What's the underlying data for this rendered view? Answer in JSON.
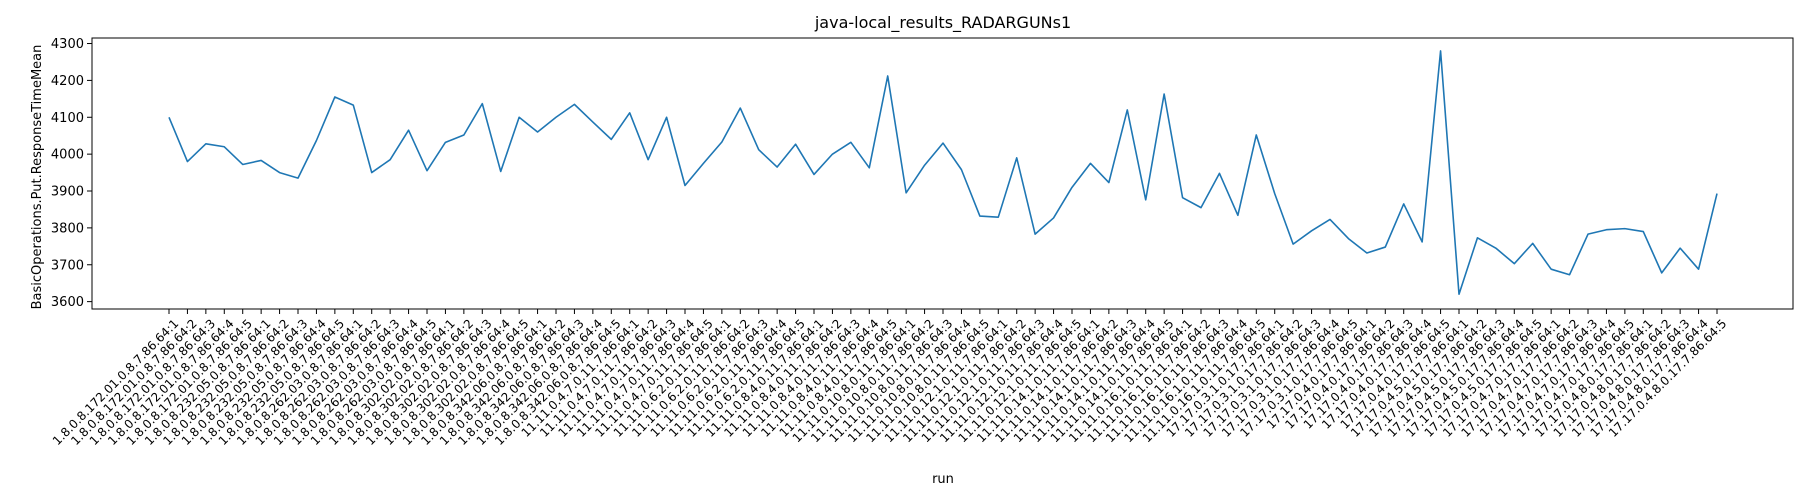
{
  "chart_data": {
    "type": "line",
    "title": "java-local_results_RADARGUNs1",
    "xlabel": "run",
    "ylabel": "BasicOperations.Put.ResponseTimeMean",
    "ylim": [
      3580,
      4315
    ],
    "yticks": [
      3600,
      3700,
      3800,
      3900,
      4000,
      4100,
      4200,
      4300
    ],
    "grid": false,
    "line_color": "#1f77b4",
    "categories": [
      "1.8.0.8.172.01.0.8.7.86.64:1",
      "1.8.0.8.172.01.0.8.7.86.64:2",
      "1.8.0.8.172.01.0.8.7.86.64:3",
      "1.8.0.8.172.01.0.8.7.86.64:4",
      "1.8.0.8.172.01.0.8.7.86.64:5",
      "1.8.0.8.232.05.0.8.7.86.64:1",
      "1.8.0.8.232.05.0.8.7.86.64:2",
      "1.8.0.8.232.05.0.8.7.86.64:3",
      "1.8.0.8.232.05.0.8.7.86.64:4",
      "1.8.0.8.232.05.0.8.7.86.64:5",
      "1.8.0.8.262.03.0.8.7.86.64:1",
      "1.8.0.8.262.03.0.8.7.86.64:2",
      "1.8.0.8.262.03.0.8.7.86.64:3",
      "1.8.0.8.262.03.0.8.7.86.64:4",
      "1.8.0.8.262.03.0.8.7.86.64:5",
      "1.8.0.8.302.02.0.8.7.86.64:1",
      "1.8.0.8.302.02.0.8.7.86.64:2",
      "1.8.0.8.302.02.0.8.7.86.64:3",
      "1.8.0.8.302.02.0.8.7.86.64:4",
      "1.8.0.8.302.02.0.8.7.86.64:5",
      "1.8.0.8.342.06.0.8.7.86.64:1",
      "1.8.0.8.342.06.0.8.7.86.64:2",
      "1.8.0.8.342.06.0.8.7.86.64:3",
      "1.8.0.8.342.06.0.8.7.86.64:4",
      "1.8.0.8.342.06.0.8.7.86.64:5",
      "11.11.0.4.7.0.11.7.86.64:1",
      "11.11.0.4.7.0.11.7.86.64:2",
      "11.11.0.4.7.0.11.7.86.64:3",
      "11.11.0.4.7.0.11.7.86.64:4",
      "11.11.0.4.7.0.11.7.86.64:5",
      "11.11.0.6.2.0.11.7.86.64:1",
      "11.11.0.6.2.0.11.7.86.64:2",
      "11.11.0.6.2.0.11.7.86.64:3",
      "11.11.0.6.2.0.11.7.86.64:4",
      "11.11.0.6.2.0.11.7.86.64:5",
      "11.11.0.8.4.0.11.7.86.64:1",
      "11.11.0.8.4.0.11.7.86.64:2",
      "11.11.0.8.4.0.11.7.86.64:3",
      "11.11.0.8.4.0.11.7.86.64:4",
      "11.11.0.8.4.0.11.7.86.64:5",
      "11.11.0.10.8.0.11.7.86.64:1",
      "11.11.0.10.8.0.11.7.86.64:2",
      "11.11.0.10.8.0.11.7.86.64:3",
      "11.11.0.10.8.0.11.7.86.64:4",
      "11.11.0.10.8.0.11.7.86.64:5",
      "11.11.0.12.1.0.11.7.86.64:1",
      "11.11.0.12.1.0.11.7.86.64:2",
      "11.11.0.12.1.0.11.7.86.64:3",
      "11.11.0.12.1.0.11.7.86.64:4",
      "11.11.0.12.1.0.11.7.86.64:5",
      "11.11.0.14.1.0.11.7.86.64:1",
      "11.11.0.14.1.0.11.7.86.64:2",
      "11.11.0.14.1.0.11.7.86.64:3",
      "11.11.0.14.1.0.11.7.86.64:4",
      "11.11.0.14.1.0.11.7.86.64:5",
      "11.11.0.16.1.0.11.7.86.64:1",
      "11.11.0.16.1.0.11.7.86.64:2",
      "11.11.0.16.1.0.11.7.86.64:3",
      "11.11.0.16.1.0.11.7.86.64:4",
      "11.11.0.16.1.0.11.7.86.64:5",
      "17.17.0.3.1.0.17.7.86.64:1",
      "17.17.0.3.1.0.17.7.86.64:2",
      "17.17.0.3.1.0.17.7.86.64:3",
      "17.17.0.3.1.0.17.7.86.64:4",
      "17.17.0.3.1.0.17.7.86.64:5",
      "17.17.0.4.0.17.7.86.64:1",
      "17.17.0.4.0.17.7.86.64:2",
      "17.17.0.4.0.17.7.86.64:3",
      "17.17.0.4.0.17.7.86.64:4",
      "17.17.0.4.0.17.7.86.64:5",
      "17.17.0.4.5.0.17.7.86.64:1",
      "17.17.0.4.5.0.17.7.86.64:2",
      "17.17.0.4.5.0.17.7.86.64:3",
      "17.17.0.4.5.0.17.7.86.64:4",
      "17.17.0.4.5.0.17.7.86.64:5",
      "17.17.0.4.7.0.17.7.86.64:1",
      "17.17.0.4.7.0.17.7.86.64:2",
      "17.17.0.4.7.0.17.7.86.64:3",
      "17.17.0.4.7.0.17.7.86.64:4",
      "17.17.0.4.7.0.17.7.86.64:5",
      "17.17.0.4.8.0.17.7.86.64:1",
      "17.17.0.4.8.0.17.7.86.64:2",
      "17.17.0.4.8.0.17.7.86.64:3",
      "17.17.0.4.8.0.17.7.86.64:4",
      "17.17.0.4.8.0.17.7.86.64:5"
    ],
    "values": [
      4100,
      3980,
      4028,
      4020,
      3972,
      3983,
      3950,
      3935,
      4037,
      4155,
      4133,
      3950,
      3985,
      4065,
      3955,
      4032,
      4052,
      4137,
      3953,
      4100,
      4060,
      4100,
      4135,
      4087,
      4040,
      4112,
      3985,
      4100,
      3915,
      3975,
      4033,
      4125,
      4012,
      3965,
      4027,
      3945,
      4000,
      4032,
      3963,
      4212,
      3895,
      3970,
      4030,
      3958,
      3832,
      3829,
      3990,
      3783,
      3827,
      3910,
      3975,
      3923,
      4120,
      3876,
      4163,
      3882,
      3855,
      3948,
      3834,
      4052,
      3893,
      3756,
      3792,
      3823,
      3771,
      3732,
      3748,
      3865,
      3762,
      4280,
      3620,
      3773,
      3745,
      3703,
      3758,
      3688,
      3673,
      3783,
      3795,
      3798,
      3790,
      3678,
      3745,
      3688,
      3893
    ]
  }
}
